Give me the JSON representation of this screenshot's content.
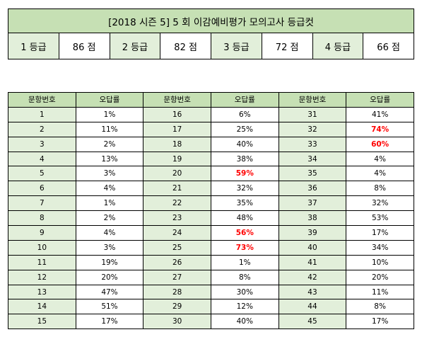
{
  "title": "[2018 시즌 5] 5 회  이감예비평가  모의고사  등급컷",
  "cutoffs": [
    {
      "grade": "1 등급",
      "score": "86 점"
    },
    {
      "grade": "2 등급",
      "score": "82 점"
    },
    {
      "grade": "3 등급",
      "score": "72 점"
    },
    {
      "grade": "4 등급",
      "score": "66 점"
    }
  ],
  "headers": {
    "number": "문항번호",
    "rate": "오답률"
  },
  "rows": [
    [
      {
        "n": "1",
        "r": "1%"
      },
      {
        "n": "16",
        "r": "6%"
      },
      {
        "n": "31",
        "r": "41%"
      }
    ],
    [
      {
        "n": "2",
        "r": "11%"
      },
      {
        "n": "17",
        "r": "25%"
      },
      {
        "n": "32",
        "r": "74%",
        "hi": true
      }
    ],
    [
      {
        "n": "3",
        "r": "2%"
      },
      {
        "n": "18",
        "r": "40%"
      },
      {
        "n": "33",
        "r": "60%",
        "hi": true
      }
    ],
    [
      {
        "n": "4",
        "r": "13%"
      },
      {
        "n": "19",
        "r": "38%"
      },
      {
        "n": "34",
        "r": "4%"
      }
    ],
    [
      {
        "n": "5",
        "r": "3%"
      },
      {
        "n": "20",
        "r": "59%",
        "hi": true
      },
      {
        "n": "35",
        "r": "4%"
      }
    ],
    [
      {
        "n": "6",
        "r": "4%"
      },
      {
        "n": "21",
        "r": "32%"
      },
      {
        "n": "36",
        "r": "8%"
      }
    ],
    [
      {
        "n": "7",
        "r": "1%"
      },
      {
        "n": "22",
        "r": "35%"
      },
      {
        "n": "37",
        "r": "32%"
      }
    ],
    [
      {
        "n": "8",
        "r": "2%"
      },
      {
        "n": "23",
        "r": "48%"
      },
      {
        "n": "38",
        "r": "53%"
      }
    ],
    [
      {
        "n": "9",
        "r": "4%"
      },
      {
        "n": "24",
        "r": "56%",
        "hi": true
      },
      {
        "n": "39",
        "r": "17%"
      }
    ],
    [
      {
        "n": "10",
        "r": "3%"
      },
      {
        "n": "25",
        "r": "73%",
        "hi": true
      },
      {
        "n": "40",
        "r": "34%"
      }
    ],
    [
      {
        "n": "11",
        "r": "19%"
      },
      {
        "n": "26",
        "r": "1%"
      },
      {
        "n": "41",
        "r": "10%"
      }
    ],
    [
      {
        "n": "12",
        "r": "20%"
      },
      {
        "n": "27",
        "r": "8%"
      },
      {
        "n": "42",
        "r": "20%"
      }
    ],
    [
      {
        "n": "13",
        "r": "47%"
      },
      {
        "n": "28",
        "r": "30%"
      },
      {
        "n": "43",
        "r": "11%"
      }
    ],
    [
      {
        "n": "14",
        "r": "51%"
      },
      {
        "n": "29",
        "r": "12%"
      },
      {
        "n": "44",
        "r": "8%"
      }
    ],
    [
      {
        "n": "15",
        "r": "17%"
      },
      {
        "n": "30",
        "r": "40%"
      },
      {
        "n": "45",
        "r": "17%"
      }
    ]
  ]
}
